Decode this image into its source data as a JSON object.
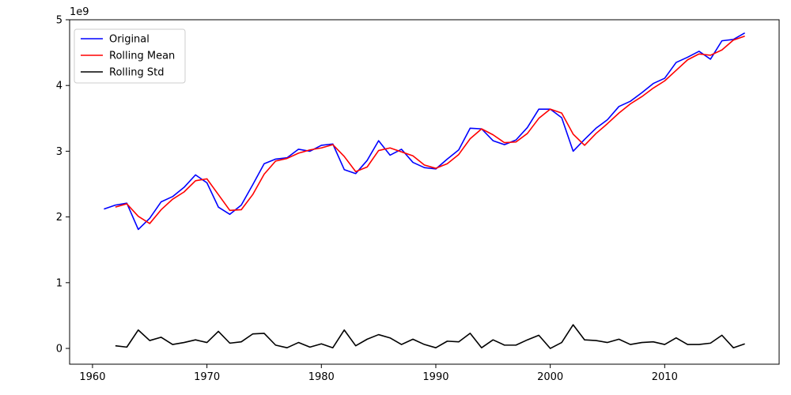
{
  "chart_data": {
    "type": "line",
    "title": "",
    "xlabel": "",
    "ylabel": "",
    "scale_label": "1e9",
    "xlim": [
      1958,
      2020
    ],
    "ylim": [
      -0.24,
      5.0
    ],
    "xticks": [
      1960,
      1970,
      1980,
      1990,
      2000,
      2010
    ],
    "yticks": [
      0,
      1,
      2,
      3,
      4,
      5
    ],
    "grid": false,
    "legend_position": "upper-left",
    "series": [
      {
        "name": "Original",
        "color": "#0000ff",
        "x": [
          1961,
          1962,
          1963,
          1964,
          1965,
          1966,
          1967,
          1968,
          1969,
          1970,
          1971,
          1972,
          1973,
          1974,
          1975,
          1976,
          1977,
          1978,
          1979,
          1980,
          1981,
          1982,
          1983,
          1984,
          1985,
          1986,
          1987,
          1988,
          1989,
          1990,
          1991,
          1992,
          1993,
          1994,
          1995,
          1996,
          1997,
          1998,
          1999,
          2000,
          2001,
          2002,
          2003,
          2004,
          2005,
          2006,
          2007,
          2008,
          2009,
          2010,
          2011,
          2012,
          2013,
          2014,
          2015,
          2016,
          2017
        ],
        "y": [
          2.12,
          2.18,
          2.21,
          1.81,
          1.98,
          2.23,
          2.31,
          2.45,
          2.64,
          2.52,
          2.15,
          2.04,
          2.18,
          2.49,
          2.81,
          2.88,
          2.9,
          3.03,
          3.0,
          3.09,
          3.11,
          2.72,
          2.66,
          2.86,
          3.16,
          2.94,
          3.03,
          2.83,
          2.75,
          2.73,
          2.88,
          3.02,
          3.35,
          3.34,
          3.16,
          3.1,
          3.17,
          3.36,
          3.64,
          3.64,
          3.51,
          3.0,
          3.18,
          3.35,
          3.48,
          3.68,
          3.76,
          3.89,
          4.03,
          4.11,
          4.35,
          4.43,
          4.52,
          4.4,
          4.68,
          4.7,
          4.8
        ]
      },
      {
        "name": "Rolling Mean",
        "color": "#ff0000",
        "x": [
          1962,
          1963,
          1964,
          1965,
          1966,
          1967,
          1968,
          1969,
          1970,
          1971,
          1972,
          1973,
          1974,
          1975,
          1976,
          1977,
          1978,
          1979,
          1980,
          1981,
          1982,
          1983,
          1984,
          1985,
          1986,
          1987,
          1988,
          1989,
          1990,
          1991,
          1992,
          1993,
          1994,
          1995,
          1996,
          1997,
          1998,
          1999,
          2000,
          2001,
          2002,
          2003,
          2004,
          2005,
          2006,
          2007,
          2008,
          2009,
          2010,
          2011,
          2012,
          2013,
          2014,
          2015,
          2016,
          2017
        ],
        "y": [
          2.15,
          2.2,
          2.01,
          1.9,
          2.11,
          2.27,
          2.38,
          2.55,
          2.58,
          2.34,
          2.1,
          2.11,
          2.34,
          2.65,
          2.85,
          2.89,
          2.97,
          3.02,
          3.05,
          3.1,
          2.92,
          2.69,
          2.76,
          3.01,
          3.05,
          2.99,
          2.93,
          2.79,
          2.74,
          2.81,
          2.95,
          3.19,
          3.34,
          3.25,
          3.13,
          3.14,
          3.27,
          3.5,
          3.64,
          3.58,
          3.26,
          3.09,
          3.27,
          3.42,
          3.58,
          3.72,
          3.83,
          3.96,
          4.07,
          4.23,
          4.39,
          4.48,
          4.46,
          4.54,
          4.69,
          4.75
        ]
      },
      {
        "name": "Rolling Std",
        "color": "#000000",
        "x": [
          1962,
          1963,
          1964,
          1965,
          1966,
          1967,
          1968,
          1969,
          1970,
          1971,
          1972,
          1973,
          1974,
          1975,
          1976,
          1977,
          1978,
          1979,
          1980,
          1981,
          1982,
          1983,
          1984,
          1985,
          1986,
          1987,
          1988,
          1989,
          1990,
          1991,
          1992,
          1993,
          1994,
          1995,
          1996,
          1997,
          1998,
          1999,
          2000,
          2001,
          2002,
          2003,
          2004,
          2005,
          2006,
          2007,
          2008,
          2009,
          2010,
          2011,
          2012,
          2013,
          2014,
          2015,
          2016,
          2017
        ],
        "y": [
          0.04,
          0.02,
          0.28,
          0.12,
          0.17,
          0.06,
          0.09,
          0.13,
          0.09,
          0.26,
          0.08,
          0.1,
          0.22,
          0.23,
          0.05,
          0.01,
          0.09,
          0.02,
          0.07,
          0.01,
          0.28,
          0.04,
          0.14,
          0.21,
          0.16,
          0.06,
          0.14,
          0.06,
          0.01,
          0.11,
          0.1,
          0.23,
          0.01,
          0.13,
          0.05,
          0.05,
          0.13,
          0.2,
          0.0,
          0.09,
          0.36,
          0.13,
          0.12,
          0.09,
          0.14,
          0.06,
          0.09,
          0.1,
          0.06,
          0.16,
          0.06,
          0.06,
          0.08,
          0.2,
          0.01,
          0.07
        ]
      }
    ]
  }
}
